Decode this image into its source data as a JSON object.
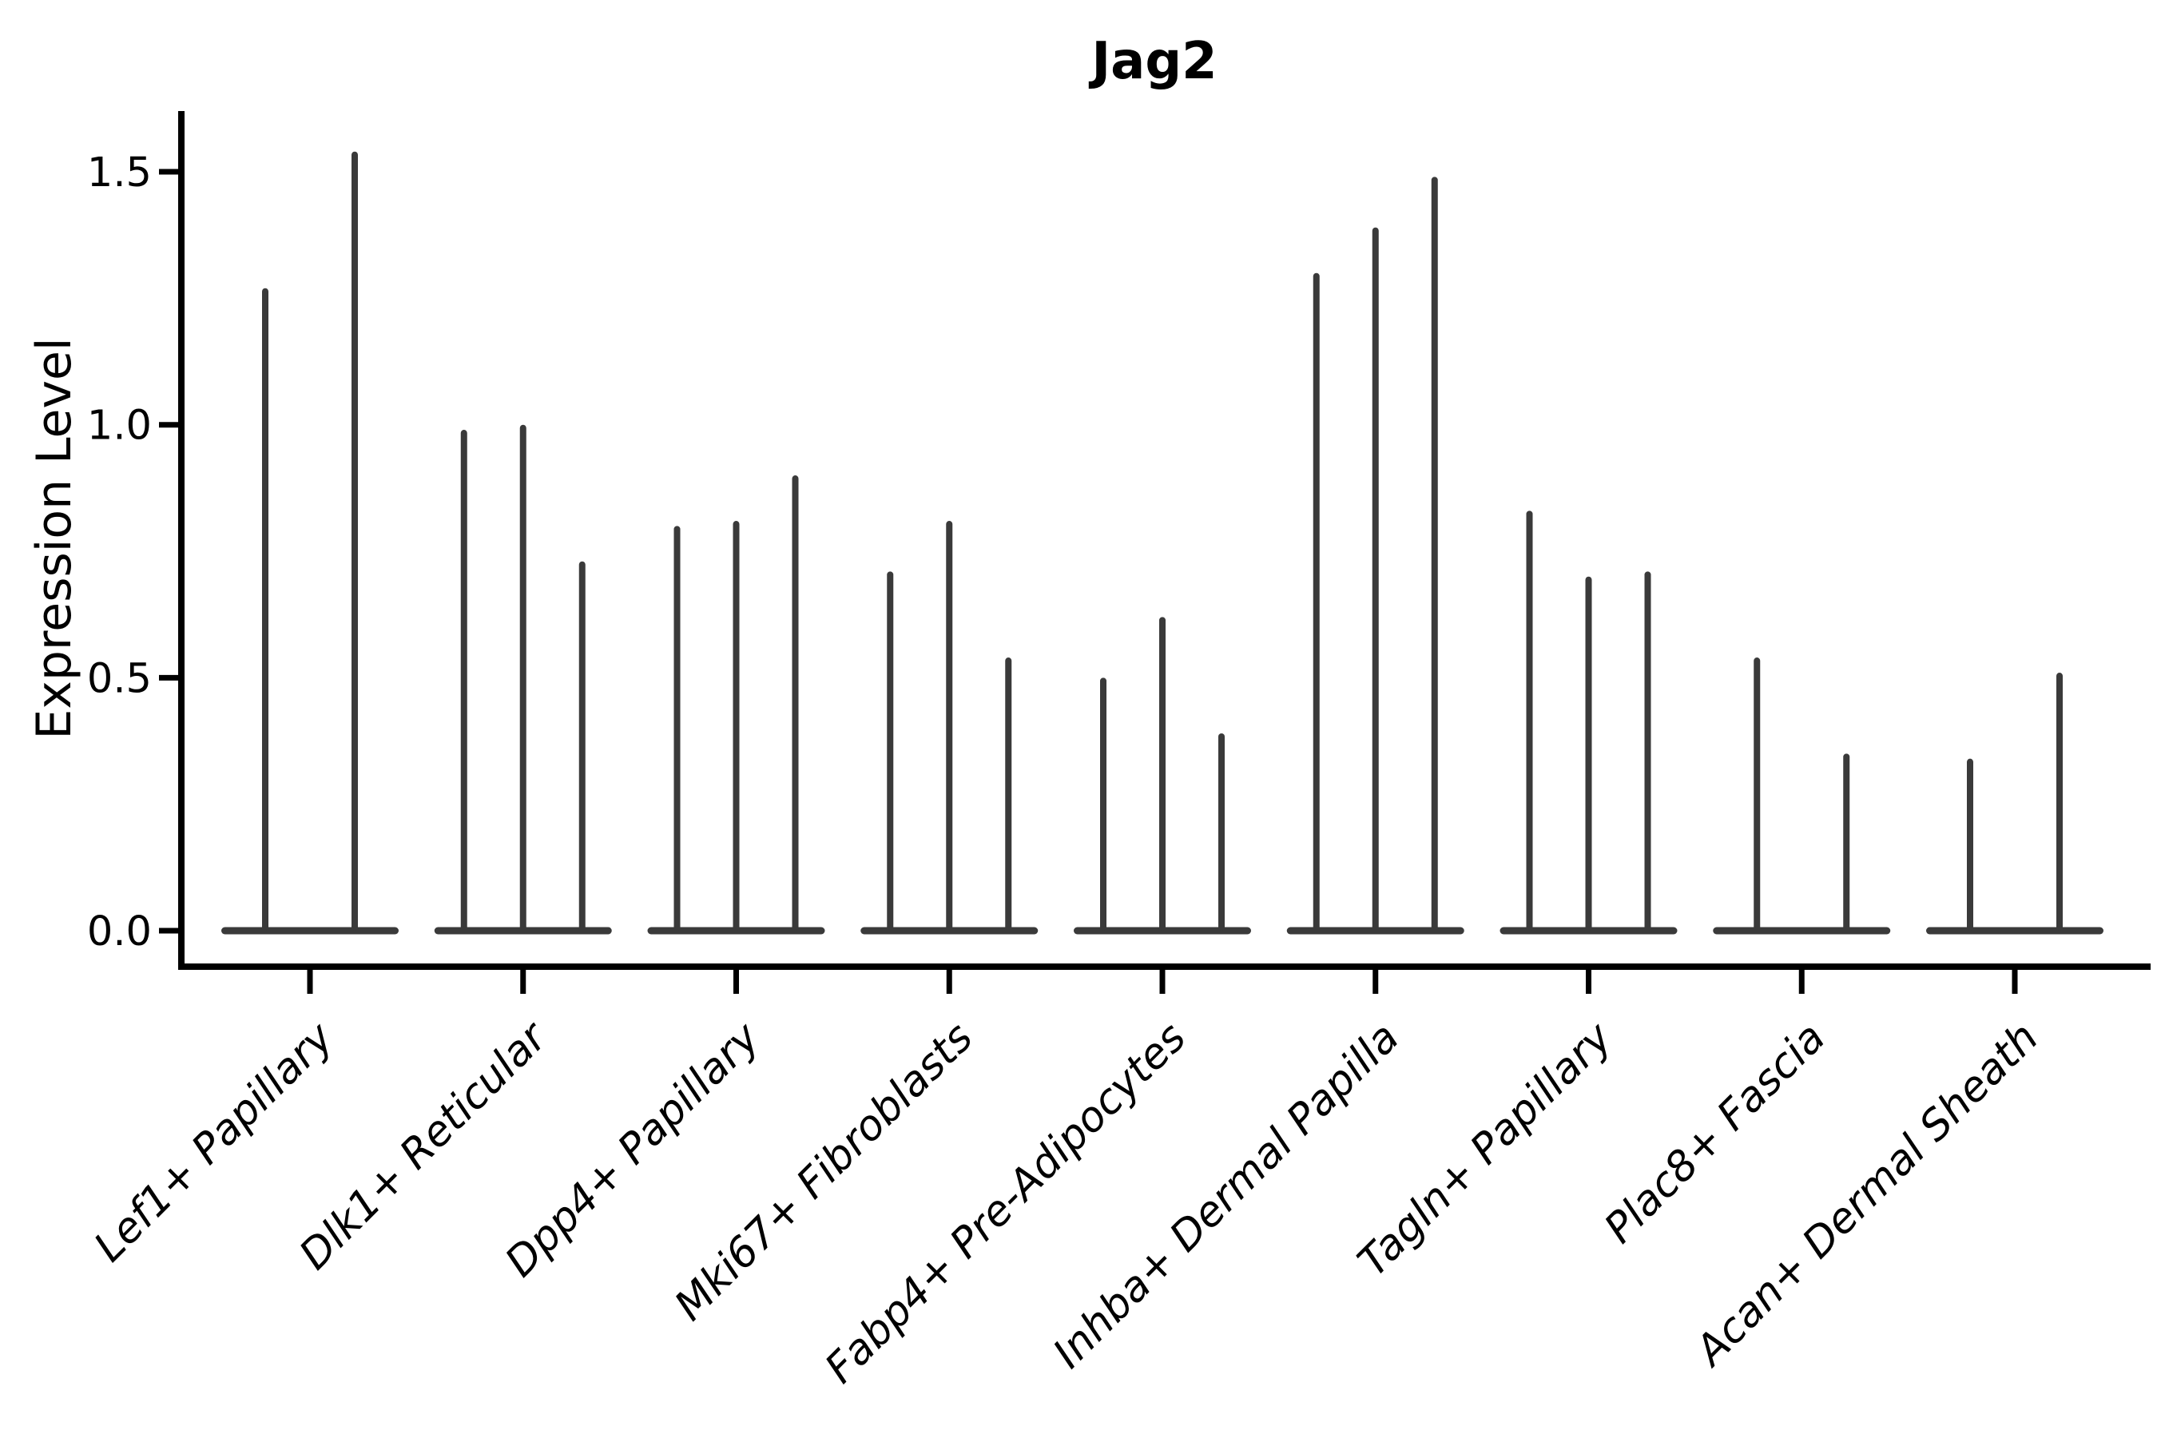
{
  "chart_data": {
    "type": "violin",
    "title": "Jag2",
    "ylabel": "Expression Level",
    "xlabel": "",
    "grid": false,
    "legend": "none",
    "violin_color": "#3a3a3a",
    "axis_color": "#000000",
    "ytick_labels": [
      "0.0",
      "0.5",
      "1.0",
      "1.5"
    ],
    "ytick_values": [
      0.0,
      0.5,
      1.0,
      1.5
    ],
    "ylim": [
      -0.07,
      1.62
    ],
    "categories": [
      {
        "label": "Lef1+ Papillary",
        "peaks": [
          1.27,
          1.54
        ]
      },
      {
        "label": "Dlk1+ Reticular",
        "peaks": [
          0.99,
          1.0,
          0.73
        ]
      },
      {
        "label": "Dpp4+ Papillary",
        "peaks": [
          0.8,
          0.81,
          0.9
        ]
      },
      {
        "label": "Mki67+ Fibroblasts",
        "peaks": [
          0.71,
          0.81,
          0.54
        ]
      },
      {
        "label": "Fabp4+ Pre-Adipocytes",
        "peaks": [
          0.5,
          0.62,
          0.39
        ]
      },
      {
        "label": "Inhba+ Dermal Papilla",
        "peaks": [
          1.3,
          1.39,
          1.49
        ]
      },
      {
        "label": "Tagln+ Papillary",
        "peaks": [
          0.83,
          0.7,
          0.71
        ]
      },
      {
        "label": "Plac8+ Fascia",
        "peaks": [
          0.54,
          0.35
        ]
      },
      {
        "label": "Acan+ Dermal Sheath",
        "peaks": [
          0.34,
          0.51
        ]
      }
    ]
  }
}
